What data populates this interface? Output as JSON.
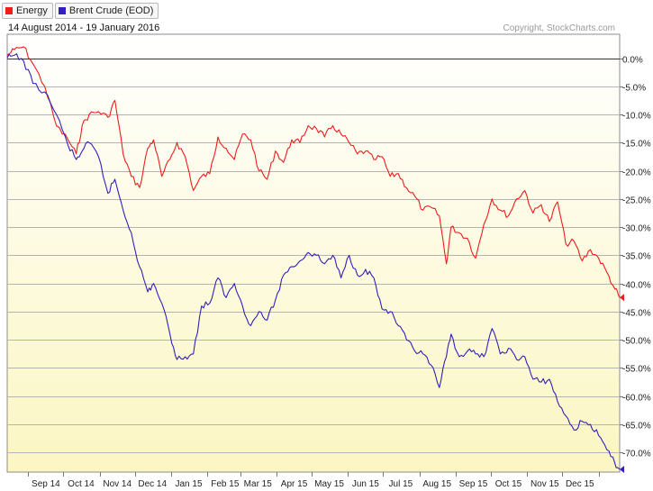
{
  "legend": [
    {
      "label": "Energy",
      "color": "#ee1c1c"
    },
    {
      "label": "Brent Crude (EOD)",
      "color": "#3320b8"
    }
  ],
  "date_range": "14 August 2014 - 19 January 2016",
  "copyright": "Copyright, StockCharts.com",
  "chart_data": {
    "type": "line",
    "x_axis": {
      "tick_labels": [
        "Sep 14",
        "Oct 14",
        "Nov 14",
        "Dec 14",
        "Jan 15",
        "Feb 15",
        "Mar 15",
        "Apr 15",
        "May 15",
        "Jun 15",
        "Jul 15",
        "Aug 15",
        "Sep 15",
        "Oct 15",
        "Nov 15",
        "Dec 15"
      ],
      "range": [
        "2014-08-14",
        "2016-01-19"
      ]
    },
    "y_axis": {
      "ylim": [
        -73,
        2
      ],
      "ticks": [
        0,
        -5,
        -10,
        -15,
        -20,
        -25,
        -30,
        -35,
        -40,
        -45,
        -50,
        -55,
        -60,
        -65,
        -70
      ],
      "tick_labels": [
        "0.0%",
        "-5.0%",
        "-10.0%",
        "-15.0%",
        "-20.0%",
        "-25.0%",
        "-30.0%",
        "-35.0%",
        "-40.0%",
        "-45.0%",
        "-50.0%",
        "-55.0%",
        "-60.0%",
        "-65.0%",
        "-70.0%"
      ],
      "side": "right"
    },
    "grid": true,
    "legend_position": "top-left",
    "x": [
      "2014-08-14",
      "2014-08-20",
      "2014-08-28",
      "2014-09-05",
      "2014-09-15",
      "2014-09-25",
      "2014-10-05",
      "2014-10-12",
      "2014-10-17",
      "2014-10-23",
      "2014-10-31",
      "2014-11-08",
      "2014-11-14",
      "2014-11-21",
      "2014-11-28",
      "2014-12-05",
      "2014-12-12",
      "2014-12-17",
      "2014-12-24",
      "2014-12-31",
      "2015-01-06",
      "2015-01-13",
      "2015-01-20",
      "2015-01-27",
      "2015-02-03",
      "2015-02-10",
      "2015-02-17",
      "2015-02-24",
      "2015-03-03",
      "2015-03-10",
      "2015-03-17",
      "2015-03-24",
      "2015-03-31",
      "2015-04-07",
      "2015-04-14",
      "2015-04-21",
      "2015-04-28",
      "2015-05-05",
      "2015-05-12",
      "2015-05-19",
      "2015-05-26",
      "2015-06-02",
      "2015-06-09",
      "2015-06-16",
      "2015-06-23",
      "2015-06-30",
      "2015-07-07",
      "2015-07-14",
      "2015-07-21",
      "2015-07-28",
      "2015-08-04",
      "2015-08-11",
      "2015-08-18",
      "2015-08-24",
      "2015-08-28",
      "2015-09-04",
      "2015-09-11",
      "2015-09-18",
      "2015-09-25",
      "2015-10-02",
      "2015-10-09",
      "2015-10-16",
      "2015-10-23",
      "2015-10-30",
      "2015-11-06",
      "2015-11-13",
      "2015-11-20",
      "2015-11-27",
      "2015-12-04",
      "2015-12-11",
      "2015-12-18",
      "2015-12-25",
      "2016-01-01",
      "2016-01-08",
      "2016-01-15",
      "2016-01-19"
    ],
    "series": [
      {
        "name": "Energy",
        "color": "#ee1c1c",
        "values": [
          0.5,
          1.5,
          2.0,
          -1.0,
          -5.0,
          -12.0,
          -14.5,
          -17.0,
          -12.0,
          -10.0,
          -9.5,
          -10.5,
          -7.5,
          -17.0,
          -21.0,
          -23.0,
          -16.0,
          -14.5,
          -21.0,
          -18.0,
          -15.0,
          -17.5,
          -23.5,
          -21.0,
          -20.5,
          -14.0,
          -16.0,
          -18.0,
          -13.5,
          -14.5,
          -20.0,
          -21.5,
          -16.5,
          -18.5,
          -14.5,
          -15.0,
          -12.0,
          -12.5,
          -14.0,
          -12.0,
          -13.5,
          -15.0,
          -17.0,
          -16.5,
          -18.0,
          -17.5,
          -21.0,
          -20.5,
          -23.0,
          -24.5,
          -27.0,
          -26.5,
          -28.0,
          -36.5,
          -30.0,
          -31.0,
          -32.0,
          -35.5,
          -29.5,
          -25.0,
          -27.0,
          -28.0,
          -25.0,
          -23.5,
          -27.5,
          -26.0,
          -29.0,
          -25.5,
          -33.0,
          -32.5,
          -36.0,
          -34.0,
          -35.5,
          -38.0,
          -41.0,
          -42.5
        ]
      },
      {
        "name": "Brent Crude (EOD)",
        "color": "#3320b8",
        "values": [
          0,
          0.5,
          -0.5,
          -4.5,
          -6.0,
          -10.0,
          -15.5,
          -18.0,
          -16.5,
          -15.0,
          -17.5,
          -24.0,
          -21.5,
          -27.0,
          -31.0,
          -37.0,
          -41.5,
          -40.0,
          -43.5,
          -49.0,
          -53.5,
          -53.0,
          -52.5,
          -44.0,
          -43.5,
          -39.0,
          -42.5,
          -40.0,
          -44.0,
          -47.5,
          -45.0,
          -46.5,
          -43.0,
          -38.5,
          -37.0,
          -36.0,
          -34.5,
          -35.0,
          -36.5,
          -35.0,
          -39.0,
          -35.0,
          -38.5,
          -37.5,
          -39.0,
          -44.5,
          -45.0,
          -47.5,
          -50.0,
          -52.0,
          -52.5,
          -54.5,
          -58.5,
          -53.0,
          -49.0,
          -53.0,
          -52.0,
          -52.5,
          -53.0,
          -48.0,
          -52.5,
          -51.5,
          -53.5,
          -53.0,
          -57.0,
          -57.5,
          -57.0,
          -61.0,
          -63.5,
          -66.0,
          -64.5,
          -65.0,
          -67.0,
          -69.5,
          -72.0,
          -73.0
        ]
      }
    ],
    "end_values": {
      "Energy": -42.5,
      "Brent Crude (EOD)": -73.0
    }
  }
}
